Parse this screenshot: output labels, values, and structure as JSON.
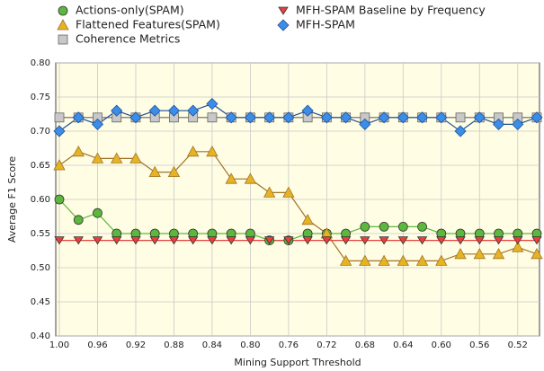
{
  "chart_data": {
    "type": "line",
    "x": [
      1.0,
      0.98,
      0.96,
      0.94,
      0.92,
      0.9,
      0.88,
      0.86,
      0.84,
      0.82,
      0.8,
      0.78,
      0.76,
      0.74,
      0.72,
      0.7,
      0.68,
      0.66,
      0.64,
      0.62,
      0.6,
      0.58,
      0.56,
      0.54,
      0.52,
      0.5
    ],
    "xlim": [
      1.0,
      0.5
    ],
    "xticks": [
      {
        "value": 1.0,
        "label": "1.00"
      },
      0.96,
      0.92,
      0.88,
      0.84,
      {
        "value": 0.8,
        "label": "0.80"
      },
      0.76,
      0.72,
      0.68,
      0.64,
      {
        "value": 0.6,
        "label": "0.60"
      },
      0.56,
      0.52
    ],
    "ylim": [
      0.4,
      0.8
    ],
    "yticks": [
      {
        "value": 0.4,
        "label": "0.40"
      },
      0.45,
      {
        "value": 0.5,
        "label": "0.50"
      },
      0.55,
      {
        "value": 0.6,
        "label": "0.60"
      },
      0.65,
      {
        "value": 0.7,
        "label": "0.70"
      },
      0.75,
      {
        "value": 0.8,
        "label": "0.80"
      }
    ],
    "xlabel": "Mining Support Threshold",
    "ylabel": "Average F1 Score",
    "grid": true,
    "series": [
      {
        "name": "Actions-only(SPAM)",
        "color": "#5cb83c",
        "marker": "circle",
        "values": [
          0.6,
          0.57,
          0.58,
          0.55,
          0.55,
          0.55,
          0.55,
          0.55,
          0.55,
          0.55,
          0.55,
          0.54,
          0.54,
          0.55,
          0.55,
          0.55,
          0.56,
          0.56,
          0.56,
          0.56,
          0.55,
          0.55,
          0.55,
          0.55,
          0.55,
          0.55
        ]
      },
      {
        "name": "Flattened Features(SPAM)",
        "color": "#e6b323",
        "line_color": "#a0742a",
        "marker": "triangle-up",
        "values": [
          0.65,
          0.67,
          0.66,
          0.66,
          0.66,
          0.64,
          0.64,
          0.67,
          0.67,
          0.63,
          0.63,
          0.61,
          0.61,
          0.57,
          0.55,
          0.51,
          0.51,
          0.51,
          0.51,
          0.51,
          0.51,
          0.52,
          0.52,
          0.52,
          0.53,
          0.52
        ]
      },
      {
        "name": "Coherence Metrics",
        "color": "#c8c8c8",
        "line_color": "#666666",
        "marker": "square",
        "values": [
          0.72,
          0.72,
          0.72,
          0.72,
          0.72,
          0.72,
          0.72,
          0.72,
          0.72,
          0.72,
          0.72,
          0.72,
          0.72,
          0.72,
          0.72,
          0.72,
          0.72,
          0.72,
          0.72,
          0.72,
          0.72,
          0.72,
          0.72,
          0.72,
          0.72,
          0.72
        ]
      },
      {
        "name": "MFH-SPAM Baseline by Frequency",
        "color": "#e8403c",
        "marker": "triangle-down",
        "values": [
          0.54,
          0.54,
          0.54,
          0.54,
          0.54,
          0.54,
          0.54,
          0.54,
          0.54,
          0.54,
          0.54,
          0.54,
          0.54,
          0.54,
          0.54,
          0.54,
          0.54,
          0.54,
          0.54,
          0.54,
          0.54,
          0.54,
          0.54,
          0.54,
          0.54,
          0.54
        ]
      },
      {
        "name": "MFH-SPAM",
        "color": "#3a8ee8",
        "line_color": "#1f4f9c",
        "marker": "diamond",
        "values": [
          0.7,
          0.72,
          0.71,
          0.73,
          0.72,
          0.73,
          0.73,
          0.73,
          0.74,
          0.72,
          0.72,
          0.72,
          0.72,
          0.73,
          0.72,
          0.72,
          0.71,
          0.72,
          0.72,
          0.72,
          0.72,
          0.7,
          0.72,
          0.71,
          0.71,
          0.72
        ]
      }
    ]
  }
}
